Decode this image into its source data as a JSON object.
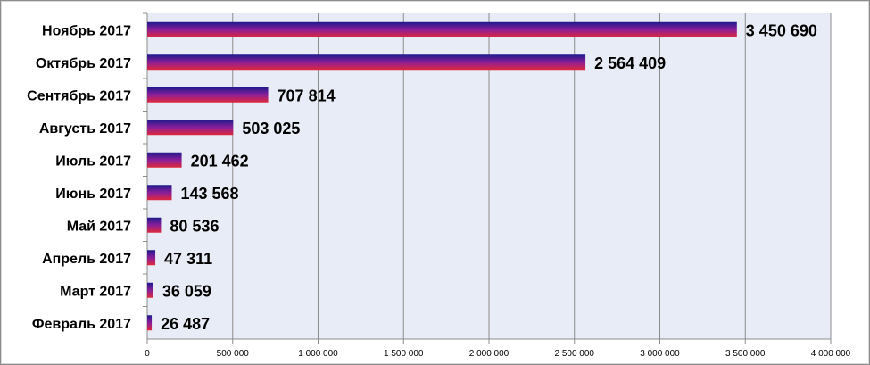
{
  "chart_data": {
    "type": "bar",
    "orientation": "horizontal",
    "categories": [
      "Февраль 2017",
      "Март 2017",
      "Апрель 2017",
      "Май 2017",
      "Июнь 2017",
      "Июль 2017",
      "Августь 2017",
      "Сентябрь 2017",
      "Октябрь 2017",
      "Ноябрь 2017"
    ],
    "values": [
      26487,
      36059,
      47311,
      80536,
      143568,
      201462,
      503025,
      707814,
      2564409,
      3450690
    ],
    "value_labels": [
      "26 487",
      "36 059",
      "47 311",
      "80 536",
      "143 568",
      "201 462",
      "503 025",
      "707 814",
      "2 564 409",
      "3 450 690"
    ],
    "x_ticks": [
      0,
      500000,
      1000000,
      1500000,
      2000000,
      2500000,
      3000000,
      3500000,
      4000000
    ],
    "x_tick_labels": [
      "0",
      "500 000",
      "1 000 000",
      "1 500 000",
      "2 000 000",
      "2 500 000",
      "3 000 000",
      "3 500 000",
      "4 000 000"
    ],
    "xlim": [
      0,
      4000000
    ],
    "title": "",
    "xlabel": "",
    "ylabel": "",
    "grid": "vertical",
    "legend": "none",
    "colors": {
      "plot_background": "#e8ecf6",
      "bar_gradient": [
        "#1e1a8c",
        "#8a1e9a",
        "#e0283a"
      ],
      "gridline": "#8c8c8c"
    }
  }
}
